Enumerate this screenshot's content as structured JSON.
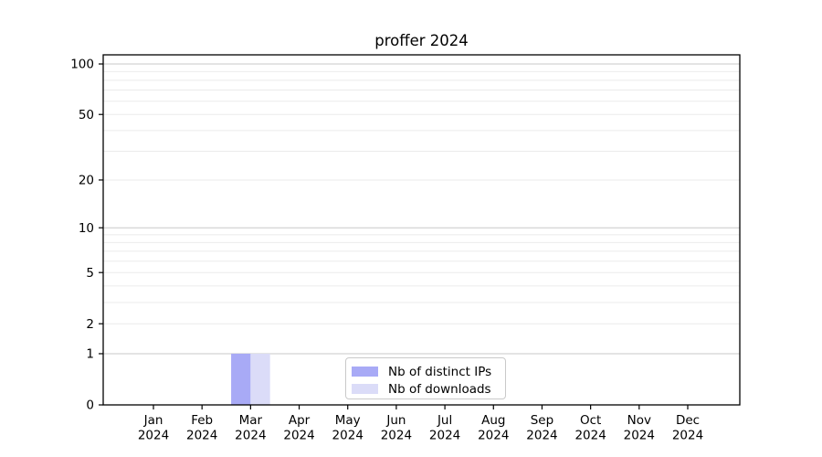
{
  "chart_data": {
    "type": "bar",
    "title": "proffer 2024",
    "categories": [
      "Jan",
      "Feb",
      "Mar",
      "Apr",
      "May",
      "Jun",
      "Jul",
      "Aug",
      "Sep",
      "Oct",
      "Nov",
      "Dec"
    ],
    "year_label": "2024",
    "series": [
      {
        "name": "Nb of distinct IPs",
        "color": "#a8aaf6",
        "values": [
          0,
          0,
          1,
          0,
          0,
          0,
          0,
          0,
          0,
          0,
          0,
          0
        ]
      },
      {
        "name": "Nb of downloads",
        "color": "#dbdcf8",
        "values": [
          0,
          0,
          1,
          0,
          0,
          0,
          0,
          0,
          0,
          0,
          0,
          0
        ]
      }
    ],
    "y_scale": "log1p",
    "ylim": [
      0,
      113
    ],
    "y_ticks": [
      0,
      1,
      2,
      5,
      10,
      20,
      50,
      100
    ],
    "y_major_gridlines": [
      1,
      10,
      100
    ],
    "y_minor_gridlines": [
      2,
      3,
      4,
      5,
      6,
      7,
      8,
      9,
      20,
      30,
      40,
      50,
      60,
      70,
      80,
      90
    ],
    "grid": true,
    "legend_position": "lower center"
  },
  "colors": {
    "axis": "#000000",
    "tick_label": "#000000",
    "major_grid": "#c8c8c8",
    "minor_grid": "#ebebeb",
    "legend_border": "#c9c9c9",
    "background": "#ffffff"
  }
}
